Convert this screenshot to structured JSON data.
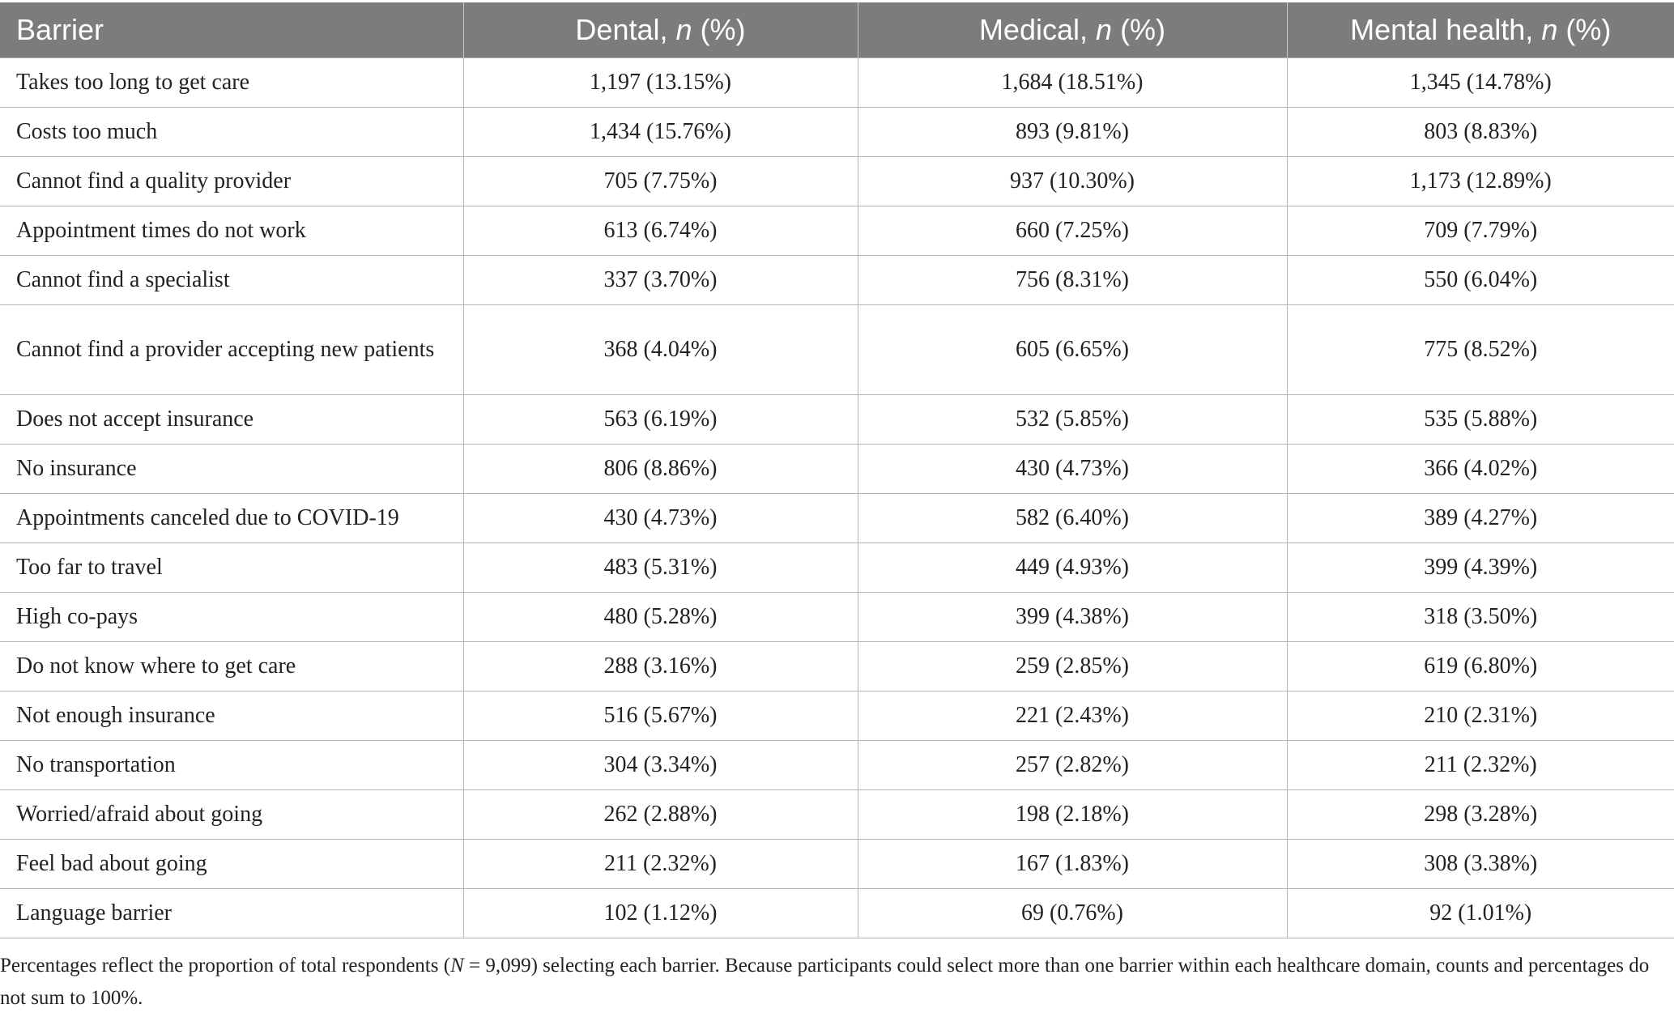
{
  "table": {
    "headers": {
      "barrier": "Barrier",
      "dental_prefix": "Dental,",
      "medical_prefix": "Medical,",
      "mental_prefix": "Mental health,",
      "n_symbol": "n",
      "pct_suffix": "(%)"
    },
    "rows": [
      {
        "barrier": "Takes too long to get care",
        "dental": "1,197 (13.15%)",
        "medical": "1,684 (18.51%)",
        "mental": "1,345 (14.78%)"
      },
      {
        "barrier": "Costs too much",
        "dental": "1,434 (15.76%)",
        "medical": "893 (9.81%)",
        "mental": "803 (8.83%)"
      },
      {
        "barrier": "Cannot find a quality provider",
        "dental": "705 (7.75%)",
        "medical": "937 (10.30%)",
        "mental": "1,173 (12.89%)"
      },
      {
        "barrier": "Appointment times do not work",
        "dental": "613 (6.74%)",
        "medical": "660 (7.25%)",
        "mental": "709 (7.79%)"
      },
      {
        "barrier": "Cannot find a specialist",
        "dental": "337 (3.70%)",
        "medical": "756 (8.31%)",
        "mental": "550 (6.04%)"
      },
      {
        "barrier": "Cannot find a provider accepting new patients",
        "dental": "368 (4.04%)",
        "medical": "605 (6.65%)",
        "mental": "775 (8.52%)"
      },
      {
        "barrier": "Does not accept insurance",
        "dental": "563 (6.19%)",
        "medical": "532 (5.85%)",
        "mental": "535 (5.88%)"
      },
      {
        "barrier": "No insurance",
        "dental": "806 (8.86%)",
        "medical": "430 (4.73%)",
        "mental": "366 (4.02%)"
      },
      {
        "barrier": "Appointments canceled due to COVID-19",
        "dental": "430 (4.73%)",
        "medical": "582 (6.40%)",
        "mental": "389 (4.27%)"
      },
      {
        "barrier": "Too far to travel",
        "dental": "483 (5.31%)",
        "medical": "449 (4.93%)",
        "mental": "399 (4.39%)"
      },
      {
        "barrier": "High co-pays",
        "dental": "480 (5.28%)",
        "medical": "399 (4.38%)",
        "mental": "318 (3.50%)"
      },
      {
        "barrier": "Do not know where to get care",
        "dental": "288 (3.16%)",
        "medical": "259 (2.85%)",
        "mental": "619 (6.80%)"
      },
      {
        "barrier": "Not enough insurance",
        "dental": "516 (5.67%)",
        "medical": "221 (2.43%)",
        "mental": "210 (2.31%)"
      },
      {
        "barrier": "No transportation",
        "dental": "304 (3.34%)",
        "medical": "257 (2.82%)",
        "mental": "211 (2.32%)"
      },
      {
        "barrier": "Worried/afraid about going",
        "dental": "262 (2.88%)",
        "medical": "198 (2.18%)",
        "mental": "298 (3.28%)"
      },
      {
        "barrier": "Feel bad about going",
        "dental": "211 (2.32%)",
        "medical": "167 (1.83%)",
        "mental": "308 (3.38%)"
      },
      {
        "barrier": "Language barrier",
        "dental": "102 (1.12%)",
        "medical": "69 (0.76%)",
        "mental": "92 (1.01%)"
      }
    ]
  },
  "footnote": {
    "part1": "Percentages reflect the proportion of total respondents (",
    "n_symbol": "N",
    "part2": " = 9,099) selecting each barrier. Because participants could select more than one barrier within each healthcare domain, counts and percentages do not sum to 100%."
  }
}
